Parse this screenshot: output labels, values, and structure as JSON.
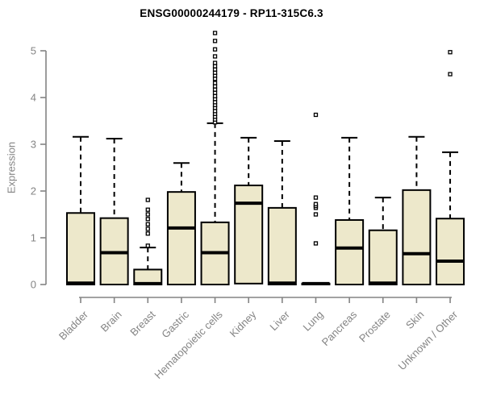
{
  "chart_data": {
    "type": "boxplot",
    "title": "ENSG00000244179 - RP11-315C6.3",
    "ylabel": "Expression",
    "xlabel": "",
    "ylim": [
      0,
      5.4
    ],
    "y_ticks": [
      0,
      1,
      2,
      3,
      4,
      5
    ],
    "grid": false,
    "legend": "none",
    "categories": [
      "Bladder",
      "Brain",
      "Breast",
      "Gastric",
      "Hematopoietic cells",
      "Kidney",
      "Liver",
      "Lung",
      "Pancreas",
      "Prostate",
      "Skin",
      "Unknown / Other"
    ],
    "boxes": [
      {
        "label": "Bladder",
        "whisker_low": 0,
        "q1": 0,
        "median": 0.03,
        "q3": 1.53,
        "whisker_high": 3.16,
        "outliers": []
      },
      {
        "label": "Brain",
        "whisker_low": 0,
        "q1": 0,
        "median": 0.68,
        "q3": 1.42,
        "whisker_high": 3.12,
        "outliers": []
      },
      {
        "label": "Breast",
        "whisker_low": 0,
        "q1": 0,
        "median": 0.02,
        "q3": 0.32,
        "whisker_high": 0.79,
        "outliers": [
          0.83,
          1.09,
          1.19,
          1.29,
          1.4,
          1.5,
          1.6,
          1.81
        ]
      },
      {
        "label": "Gastric",
        "whisker_low": 0,
        "q1": 0,
        "median": 1.21,
        "q3": 1.98,
        "whisker_high": 2.6,
        "outliers": []
      },
      {
        "label": "Hematopoietic cells",
        "whisker_low": 0,
        "q1": 0,
        "median": 0.68,
        "q3": 1.33,
        "whisker_high": 3.45,
        "outliers": [
          3.47,
          3.53,
          3.59,
          3.65,
          3.71,
          3.78,
          3.84,
          3.9,
          3.97,
          4.03,
          4.1,
          4.17,
          4.24,
          4.31,
          4.4,
          4.47,
          4.53,
          4.6,
          4.67,
          4.74,
          4.88,
          5.03,
          5.21,
          5.38
        ]
      },
      {
        "label": "Kidney",
        "whisker_low": 0,
        "q1": 0.02,
        "median": 1.74,
        "q3": 2.12,
        "whisker_high": 3.14,
        "outliers": []
      },
      {
        "label": "Liver",
        "whisker_low": 0,
        "q1": 0,
        "median": 0.03,
        "q3": 1.64,
        "whisker_high": 3.07,
        "outliers": []
      },
      {
        "label": "Lung",
        "whisker_low": 0,
        "q1": 0,
        "median": 0.02,
        "q3": 0.02,
        "whisker_high": 0.02,
        "outliers": [
          0.88,
          1.5,
          1.64,
          1.68,
          1.72,
          1.86,
          3.63
        ]
      },
      {
        "label": "Pancreas",
        "whisker_low": 0,
        "q1": 0,
        "median": 0.78,
        "q3": 1.38,
        "whisker_high": 3.14,
        "outliers": []
      },
      {
        "label": "Prostate",
        "whisker_low": 0,
        "q1": 0,
        "median": 0.03,
        "q3": 1.16,
        "whisker_high": 1.86,
        "outliers": []
      },
      {
        "label": "Skin",
        "whisker_low": 0,
        "q1": 0,
        "median": 0.66,
        "q3": 2.02,
        "whisker_high": 3.16,
        "outliers": []
      },
      {
        "label": "Unknown / Other",
        "whisker_low": 0,
        "q1": 0,
        "median": 0.5,
        "q3": 1.41,
        "whisker_high": 2.83,
        "outliers": [
          4.5,
          4.97
        ]
      }
    ],
    "colors": {
      "box_fill": "#EDE8CB",
      "box_stroke": "#000000",
      "axis": "#848484",
      "title_text": "#000000"
    }
  }
}
